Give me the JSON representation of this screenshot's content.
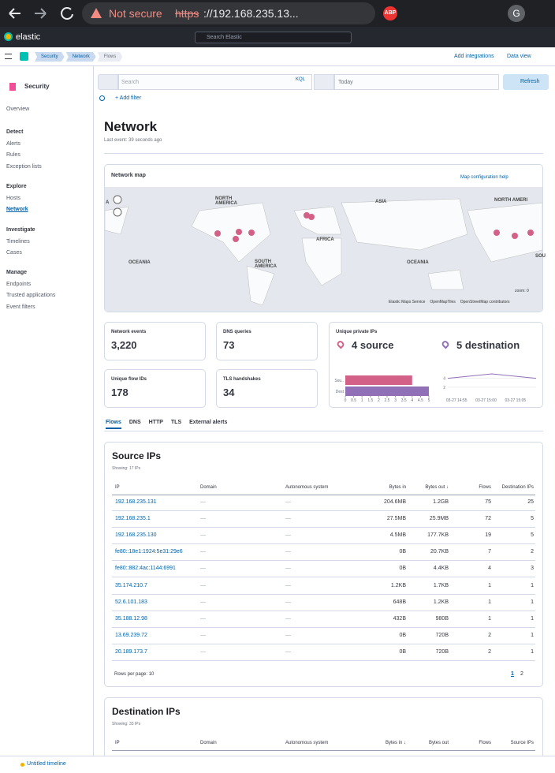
{
  "browser": {
    "security": "Not secure",
    "url_scheme": "https",
    "url_rest": "://192.168.235.13...",
    "extension": "ABP",
    "avatar": "G"
  },
  "topbar": {
    "brand": "elastic",
    "search": "Search Elastic"
  },
  "breadcrumbs": [
    "Security",
    "Network",
    "Flows"
  ],
  "header_links": {
    "integrations": "Add integrations",
    "data_view": "Data view"
  },
  "sidebar": {
    "title": "Security",
    "overview": "Overview",
    "groups": [
      {
        "title": "Detect",
        "items": [
          "Alerts",
          "Rules",
          "Exception lists"
        ]
      },
      {
        "title": "Explore",
        "items": [
          "Hosts",
          "Network"
        ]
      },
      {
        "title": "Investigate",
        "items": [
          "Timelines",
          "Cases"
        ]
      },
      {
        "title": "Manage",
        "items": [
          "Endpoints",
          "Trusted applications",
          "Event filters"
        ]
      }
    ]
  },
  "query": {
    "search": "Search",
    "language": "KQL",
    "date": "Today",
    "refresh": "Refresh",
    "add_filter": "+ Add filter"
  },
  "page": {
    "title": "Network",
    "subtitle": "Last event: 39 seconds ago"
  },
  "map": {
    "title": "Network map",
    "help": "Map configuration help",
    "labels": [
      "NORTH AMERICA",
      "ASIA",
      "AFRICA",
      "OCEANIA",
      "SOUTH AMERICA",
      "OCEANIA",
      "NORTH AMERI",
      "SOU",
      "A"
    ],
    "zoom": "zoom: 0",
    "attribution": [
      "Elastic Maps Service",
      "OpenMapTiles",
      "OpenStreetMap contributors"
    ]
  },
  "kpis": [
    {
      "title": "Network events",
      "value": "3,220"
    },
    {
      "title": "DNS queries",
      "value": "73"
    },
    {
      "title": "Unique flow IDs",
      "value": "178"
    },
    {
      "title": "TLS handshakes",
      "value": "34"
    }
  ],
  "private_ips": {
    "title": "Unique private IPs",
    "source": "4 source",
    "destination": "5 destination",
    "bar_chart": {
      "type": "bar",
      "categories": [
        "Sou..",
        "Dest"
      ],
      "values": [
        4,
        5
      ],
      "colors": [
        "#d36086",
        "#9170b8"
      ],
      "xlim": [
        0,
        5
      ],
      "xticks": [
        0,
        0.5,
        1,
        1.5,
        2,
        2.5,
        3,
        3.5,
        4,
        4.5,
        5
      ]
    },
    "line_chart": {
      "type": "line",
      "x": [
        "03-27 14:55",
        "03-27 15:00",
        "03-27 15:05"
      ],
      "values": [
        4,
        5,
        4
      ],
      "color": "#9170b8",
      "ylim": [
        0,
        5
      ],
      "yticks": [
        2,
        4
      ]
    }
  },
  "tabs": [
    "Flows",
    "DNS",
    "HTTP",
    "TLS",
    "External alerts"
  ],
  "source_table": {
    "title": "Source IPs",
    "count": "Showing: 17 IPs",
    "columns": [
      "IP",
      "Domain",
      "Autonomous system",
      "Bytes in",
      "Bytes out ↓",
      "Flows",
      "Destination IPs"
    ],
    "rows": [
      [
        "192.168.235.131",
        "—",
        "—",
        "204.6MB",
        "1.2GB",
        "75",
        "25"
      ],
      [
        "192.168.235.1",
        "—",
        "—",
        "27.5MB",
        "25.9MB",
        "72",
        "5"
      ],
      [
        "192.168.235.130",
        "—",
        "—",
        "4.5MB",
        "177.7KB",
        "19",
        "5"
      ],
      [
        "fe80::18e1:1924:5e31:29e6",
        "—",
        "—",
        "0B",
        "20.7KB",
        "7",
        "2"
      ],
      [
        "fe80::882:4ac:1144:6991",
        "—",
        "—",
        "0B",
        "4.4KB",
        "4",
        "3"
      ],
      [
        "35.174.210.7",
        "—",
        "—",
        "1.2KB",
        "1.7KB",
        "1",
        "1"
      ],
      [
        "52.6.101.183",
        "—",
        "—",
        "648B",
        "1.2KB",
        "1",
        "1"
      ],
      [
        "35.188.12.98",
        "—",
        "—",
        "432B",
        "980B",
        "1",
        "1"
      ],
      [
        "13.69.239.72",
        "—",
        "—",
        "0B",
        "720B",
        "2",
        "1"
      ],
      [
        "20.189.173.7",
        "—",
        "—",
        "0B",
        "720B",
        "2",
        "1"
      ]
    ],
    "rows_per_page": "Rows per page: 10",
    "pages": [
      "1",
      "2"
    ]
  },
  "dest_table": {
    "title": "Destination IPs",
    "count": "Showing: 33 IPs",
    "columns": [
      "IP",
      "Domain",
      "Autonomous system",
      "Bytes in ↓",
      "Bytes out",
      "Flows",
      "Source IPs"
    ]
  },
  "footer": {
    "timeline": "Untitled timeline"
  }
}
